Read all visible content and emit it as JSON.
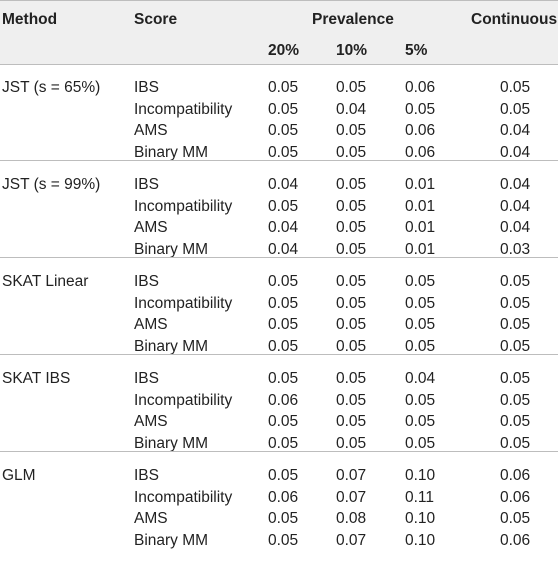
{
  "header": {
    "method": "Method",
    "score": "Score",
    "prevalence": "Prevalence",
    "continuous": "Continuous",
    "p20": "20%",
    "p10": "10%",
    "p5": "5%"
  },
  "groups": [
    {
      "method": "JST (s = 65%)",
      "rows": [
        {
          "score": "IBS",
          "p20": "0.05",
          "p10": "0.05",
          "p5": "0.06",
          "cont": "0.05"
        },
        {
          "score": "Incompatibility",
          "p20": "0.05",
          "p10": "0.04",
          "p5": "0.05",
          "cont": "0.05"
        },
        {
          "score": "AMS",
          "p20": "0.05",
          "p10": "0.05",
          "p5": "0.06",
          "cont": "0.04"
        },
        {
          "score": "Binary MM",
          "p20": "0.05",
          "p10": "0.05",
          "p5": "0.06",
          "cont": "0.04"
        }
      ]
    },
    {
      "method": "JST (s = 99%)",
      "rows": [
        {
          "score": "IBS",
          "p20": "0.04",
          "p10": "0.05",
          "p5": "0.01",
          "cont": "0.04"
        },
        {
          "score": "Incompatibility",
          "p20": "0.05",
          "p10": "0.05",
          "p5": "0.01",
          "cont": "0.04"
        },
        {
          "score": "AMS",
          "p20": "0.04",
          "p10": "0.05",
          "p5": "0.01",
          "cont": "0.04"
        },
        {
          "score": "Binary MM",
          "p20": "0.04",
          "p10": "0.05",
          "p5": "0.01",
          "cont": "0.03"
        }
      ]
    },
    {
      "method": "SKAT Linear",
      "rows": [
        {
          "score": "IBS",
          "p20": "0.05",
          "p10": "0.05",
          "p5": "0.05",
          "cont": "0.05"
        },
        {
          "score": "Incompatibility",
          "p20": "0.05",
          "p10": "0.05",
          "p5": "0.05",
          "cont": "0.05"
        },
        {
          "score": "AMS",
          "p20": "0.05",
          "p10": "0.05",
          "p5": "0.05",
          "cont": "0.05"
        },
        {
          "score": "Binary MM",
          "p20": "0.05",
          "p10": "0.05",
          "p5": "0.05",
          "cont": "0.05"
        }
      ]
    },
    {
      "method": "SKAT IBS",
      "rows": [
        {
          "score": "IBS",
          "p20": "0.05",
          "p10": "0.05",
          "p5": "0.04",
          "cont": "0.05"
        },
        {
          "score": "Incompatibility",
          "p20": "0.06",
          "p10": "0.05",
          "p5": "0.05",
          "cont": "0.05"
        },
        {
          "score": "AMS",
          "p20": "0.05",
          "p10": "0.05",
          "p5": "0.05",
          "cont": "0.05"
        },
        {
          "score": "Binary MM",
          "p20": "0.05",
          "p10": "0.05",
          "p5": "0.05",
          "cont": "0.05"
        }
      ]
    },
    {
      "method": "GLM",
      "rows": [
        {
          "score": "IBS",
          "p20": "0.05",
          "p10": "0.07",
          "p5": "0.10",
          "cont": "0.06"
        },
        {
          "score": "Incompatibility",
          "p20": "0.06",
          "p10": "0.07",
          "p5": "0.11",
          "cont": "0.06"
        },
        {
          "score": "AMS",
          "p20": "0.05",
          "p10": "0.08",
          "p5": "0.10",
          "cont": "0.05"
        },
        {
          "score": "Binary MM",
          "p20": "0.05",
          "p10": "0.07",
          "p5": "0.10",
          "cont": "0.06"
        }
      ]
    }
  ]
}
